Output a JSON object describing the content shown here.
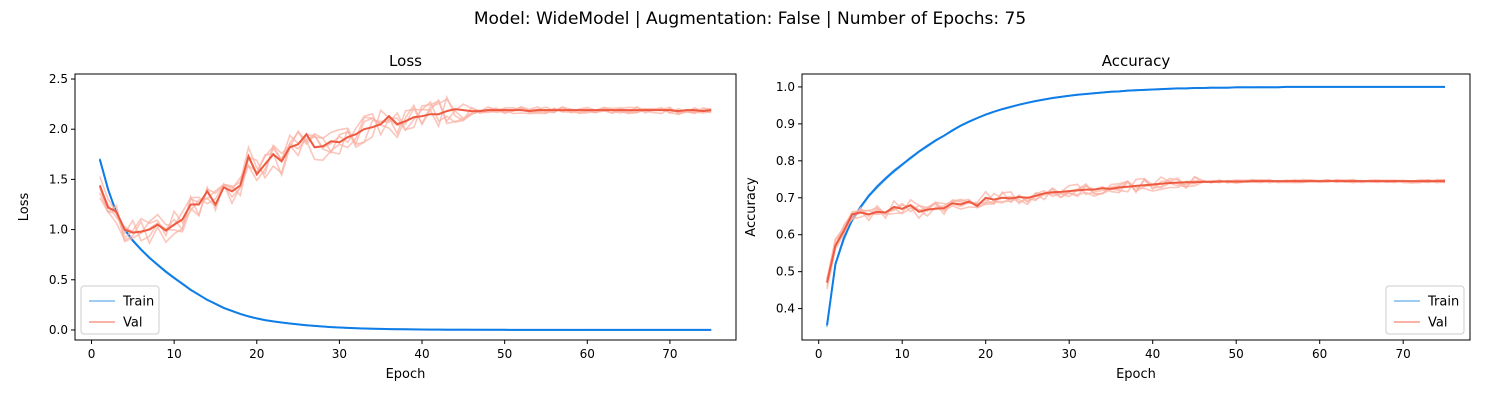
{
  "suptitle": "Model: WideModel | Augmentation: False | Number of Epochs: 75",
  "colors": {
    "train_light": "#9ecbf2",
    "train": "#0f7de8",
    "val_light": "#f9b3a6",
    "val": "#ee5a40",
    "axis": "#000000"
  },
  "chart_data": [
    {
      "type": "line",
      "title": "Loss",
      "xlabel": "Epoch",
      "ylabel": "Loss",
      "xlim": [
        -2,
        78
      ],
      "ylim": [
        -0.1,
        2.55
      ],
      "xticks": [
        0,
        10,
        20,
        30,
        40,
        50,
        60,
        70
      ],
      "yticks": [
        0.0,
        0.5,
        1.0,
        1.5,
        2.0,
        2.5
      ],
      "ytick_labels": [
        "0.0",
        "0.5",
        "1.0",
        "1.5",
        "2.0",
        "2.5"
      ],
      "legend": {
        "placement": "lower-left",
        "entries": [
          "Train",
          "Val"
        ]
      },
      "grid": false,
      "series": [
        {
          "name": "Train",
          "role": "mean",
          "x_start": 1,
          "values": [
            1.7,
            1.4,
            1.17,
            1.0,
            0.89,
            0.8,
            0.72,
            0.65,
            0.58,
            0.52,
            0.46,
            0.4,
            0.35,
            0.3,
            0.26,
            0.22,
            0.19,
            0.16,
            0.135,
            0.115,
            0.098,
            0.085,
            0.074,
            0.064,
            0.055,
            0.047,
            0.04,
            0.034,
            0.029,
            0.025,
            0.021,
            0.018,
            0.015,
            0.013,
            0.011,
            0.009,
            0.008,
            0.007,
            0.006,
            0.005,
            0.004,
            0.004,
            0.003,
            0.003,
            0.003,
            0.002,
            0.002,
            0.002,
            0.002,
            0.002,
            0.001,
            0.001,
            0.001,
            0.001,
            0.001,
            0.001,
            0.001,
            0.001,
            0.001,
            0.001,
            0.001,
            0.001,
            0.001,
            0.001,
            0.001,
            0.001,
            0.001,
            0.001,
            0.001,
            0.001,
            0.001,
            0.001,
            0.001,
            0.001,
            0.001
          ]
        },
        {
          "name": "Val",
          "role": "mean",
          "x_start": 1,
          "values": [
            1.44,
            1.22,
            1.18,
            1.0,
            0.97,
            0.98,
            1.0,
            1.05,
            0.99,
            1.05,
            1.1,
            1.25,
            1.25,
            1.38,
            1.25,
            1.42,
            1.38,
            1.44,
            1.73,
            1.55,
            1.65,
            1.75,
            1.68,
            1.82,
            1.85,
            1.95,
            1.82,
            1.83,
            1.88,
            1.87,
            1.92,
            1.95,
            2.0,
            2.02,
            2.05,
            2.13,
            2.05,
            2.08,
            2.12,
            2.13,
            2.15,
            2.15,
            2.18,
            2.2,
            2.19,
            2.18,
            2.18,
            2.19,
            2.19,
            2.19,
            2.19,
            2.19,
            2.18,
            2.19,
            2.19,
            2.19,
            2.19,
            2.19,
            2.19,
            2.19,
            2.19,
            2.19,
            2.19,
            2.19,
            2.19,
            2.19,
            2.19,
            2.19,
            2.19,
            2.19,
            2.18,
            2.19,
            2.19,
            2.18,
            2.19
          ]
        }
      ]
    },
    {
      "type": "line",
      "title": "Accuracy",
      "xlabel": "Epoch",
      "ylabel": "Accuracy",
      "xlim": [
        -2,
        78
      ],
      "ylim": [
        0.315,
        1.035
      ],
      "xticks": [
        0,
        10,
        20,
        30,
        40,
        50,
        60,
        70
      ],
      "yticks": [
        0.4,
        0.5,
        0.6,
        0.7,
        0.8,
        0.9,
        1.0
      ],
      "ytick_labels": [
        "0.4",
        "0.5",
        "0.6",
        "0.7",
        "0.8",
        "0.9",
        "1.0"
      ],
      "legend": {
        "placement": "lower-right",
        "entries": [
          "Train",
          "Val"
        ]
      },
      "grid": false,
      "series": [
        {
          "name": "Train",
          "role": "mean",
          "x_start": 1,
          "values": [
            0.355,
            0.52,
            0.59,
            0.64,
            0.675,
            0.705,
            0.73,
            0.752,
            0.772,
            0.79,
            0.808,
            0.825,
            0.84,
            0.855,
            0.868,
            0.882,
            0.895,
            0.906,
            0.916,
            0.925,
            0.933,
            0.94,
            0.946,
            0.952,
            0.957,
            0.962,
            0.966,
            0.97,
            0.973,
            0.976,
            0.979,
            0.981,
            0.983,
            0.985,
            0.987,
            0.988,
            0.99,
            0.991,
            0.992,
            0.993,
            0.994,
            0.995,
            0.996,
            0.996,
            0.997,
            0.997,
            0.998,
            0.998,
            0.998,
            0.999,
            0.999,
            0.999,
            0.999,
            0.999,
            0.999,
            1.0,
            1.0,
            1.0,
            1.0,
            1.0,
            1.0,
            1.0,
            1.0,
            1.0,
            1.0,
            1.0,
            1.0,
            1.0,
            1.0,
            1.0,
            1.0,
            1.0,
            1.0,
            1.0,
            1.0
          ]
        },
        {
          "name": "Val",
          "role": "mean",
          "x_start": 1,
          "values": [
            0.47,
            0.57,
            0.61,
            0.655,
            0.66,
            0.655,
            0.662,
            0.66,
            0.675,
            0.67,
            0.68,
            0.662,
            0.668,
            0.67,
            0.672,
            0.685,
            0.682,
            0.69,
            0.678,
            0.7,
            0.695,
            0.7,
            0.698,
            0.702,
            0.7,
            0.705,
            0.712,
            0.715,
            0.716,
            0.718,
            0.72,
            0.722,
            0.722,
            0.726,
            0.724,
            0.728,
            0.73,
            0.732,
            0.734,
            0.736,
            0.738,
            0.74,
            0.741,
            0.742,
            0.742,
            0.743,
            0.743,
            0.744,
            0.744,
            0.744,
            0.744,
            0.745,
            0.745,
            0.745,
            0.745,
            0.745,
            0.745,
            0.745,
            0.745,
            0.745,
            0.745,
            0.745,
            0.745,
            0.745,
            0.745,
            0.745,
            0.745,
            0.745,
            0.745,
            0.745,
            0.745,
            0.745,
            0.745,
            0.745,
            0.745
          ]
        }
      ]
    }
  ]
}
